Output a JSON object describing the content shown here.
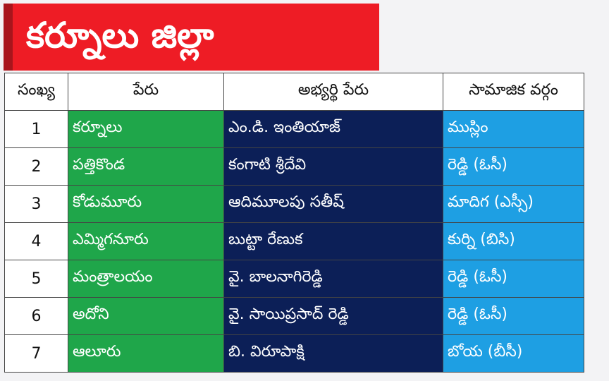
{
  "title": "కర్నూలు జిల్లా",
  "colors": {
    "title_bg": "#ee1c25",
    "constituency_bg": "#1fa64a",
    "candidate_bg": "#0c1f57",
    "caste_bg": "#1e9fe3"
  },
  "table": {
    "headers": [
      "సంఖ్య",
      "పేరు",
      "అభ్యర్థి పేరు",
      "సామాజిక వర్గం"
    ],
    "rows": [
      {
        "num": "1",
        "constituency": "కర్నూలు",
        "candidate": "ఎం.డి. ఇంతియాజ్",
        "caste": "ముస్లిం"
      },
      {
        "num": "2",
        "constituency": "పత్తికొండ",
        "candidate": "కంగాటి శ్రీదేవి",
        "caste": "రెడ్డి (ఓసీ)"
      },
      {
        "num": "3",
        "constituency": "కోడుమూరు",
        "candidate": "ఆదిమూలపు సతీష్",
        "caste": "మాదిగ (ఎస్సీ)"
      },
      {
        "num": "4",
        "constituency": "ఎమ్మిగనూరు",
        "candidate": "బుట్టా రేణుక",
        "caste": "కుర్ని (బిసి)"
      },
      {
        "num": "5",
        "constituency": "మంత్రాలయం",
        "candidate": "వై. బాలనాగిరెడ్డి",
        "caste": "రెడ్డి (ఓసీ)"
      },
      {
        "num": "6",
        "constituency": "అదోని",
        "candidate": "వై. సాయిప్రసాద్ రెడ్డి",
        "caste": "రెడ్డి (ఓసీ)"
      },
      {
        "num": "7",
        "constituency": "ఆలూరు",
        "candidate": "బి. విరూపాక్షి",
        "caste": "బోయ (బీసీ)"
      }
    ]
  }
}
